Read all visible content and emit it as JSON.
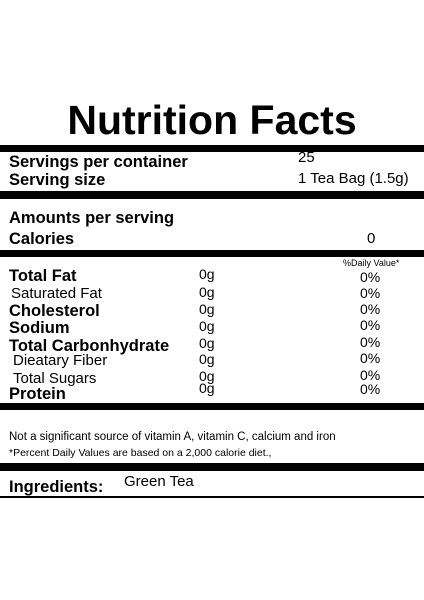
{
  "title": "Nutrition Facts",
  "servings": {
    "per_container_label": "Servings per container",
    "per_container_value": "25",
    "size_label": "Serving size",
    "size_value": "1 Tea Bag (1.5g)"
  },
  "amounts": {
    "label": "Amounts per serving",
    "calories_label": "Calories",
    "calories_value": "0"
  },
  "dv_header": "%Daily Value*",
  "nutrients": [
    {
      "name": "Total Fat",
      "amount": "0g",
      "dv": "0%"
    },
    {
      "name": "Saturated Fat",
      "amount": "0g",
      "dv": "0%"
    },
    {
      "name": "Cholesterol",
      "amount": "0g",
      "dv": "0%"
    },
    {
      "name": "Sodium",
      "amount": "0g",
      "dv": "0%"
    },
    {
      "name": "Total Carbonhydrate",
      "amount": "0g",
      "dv": "0%"
    },
    {
      "name": "Dieatary Fiber",
      "amount": "0g",
      "dv": "0%"
    },
    {
      "name": "Total Sugars",
      "amount": "0g",
      "dv": "0%"
    },
    {
      "name": "Protein",
      "amount": "0g",
      "dv": "0%"
    }
  ],
  "footnotes": {
    "vitamins": "Not a significant source of vitamin A, vitamin C, calcium and iron",
    "daily_values": "*Percent Daily Values are based on a 2,000 calorie diet.,"
  },
  "ingredients": {
    "label": "Ingredients:",
    "value": "Green Tea"
  }
}
